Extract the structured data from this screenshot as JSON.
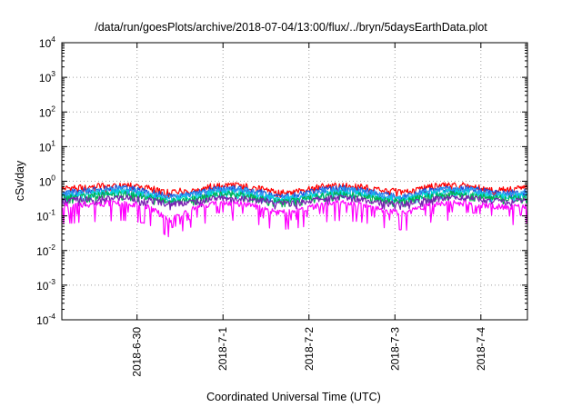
{
  "chart_data": {
    "type": "line",
    "title": "/data/run/goesPlots/archive/2018-07-04/13:00/flux/../bryn/5daysEarthData.plot",
    "xlabel": "Coordinated Universal Time (UTC)",
    "ylabel": "cSv/day",
    "x_range": [
      "2018-06-29 03:00",
      "2018-07-04 13:00"
    ],
    "ylim": [
      0.0001,
      10000
    ],
    "yscale": "log",
    "grid": true,
    "y_ticks": [
      {
        "base": "10",
        "exp": "-4"
      },
      {
        "base": "10",
        "exp": "-3"
      },
      {
        "base": "10",
        "exp": "-2"
      },
      {
        "base": "10",
        "exp": "-1"
      },
      {
        "base": "10",
        "exp": "0"
      },
      {
        "base": "10",
        "exp": "1"
      },
      {
        "base": "10",
        "exp": "2"
      },
      {
        "base": "10",
        "exp": "3"
      },
      {
        "base": "10",
        "exp": "4"
      }
    ],
    "x_ticks": [
      "2018-6-30",
      "2018-7-1",
      "2018-7-2",
      "2018-7-3",
      "2018-7-4"
    ],
    "x": [
      "2018-06-29 03:00",
      "2018-06-29 09:00",
      "2018-06-29 15:00",
      "2018-06-29 21:00",
      "2018-06-30 03:00",
      "2018-06-30 09:00",
      "2018-06-30 15:00",
      "2018-06-30 21:00",
      "2018-07-01 03:00",
      "2018-07-01 09:00",
      "2018-07-01 15:00",
      "2018-07-01 21:00",
      "2018-07-02 03:00",
      "2018-07-02 09:00",
      "2018-07-02 15:00",
      "2018-07-02 21:00",
      "2018-07-03 03:00",
      "2018-07-03 09:00",
      "2018-07-03 15:00",
      "2018-07-03 21:00",
      "2018-07-04 03:00",
      "2018-07-04 09:00",
      "2018-07-04 13:00"
    ],
    "series": [
      {
        "color": "#ff0000",
        "values": [
          0.62,
          0.68,
          0.78,
          0.82,
          0.66,
          0.5,
          0.58,
          0.74,
          0.8,
          0.68,
          0.5,
          0.55,
          0.72,
          0.8,
          0.72,
          0.55,
          0.5,
          0.7,
          0.8,
          0.78,
          0.62,
          0.6,
          0.66
        ]
      },
      {
        "color": "#1f4fd8",
        "values": [
          0.5,
          0.55,
          0.63,
          0.66,
          0.52,
          0.38,
          0.45,
          0.6,
          0.65,
          0.55,
          0.38,
          0.42,
          0.58,
          0.65,
          0.58,
          0.42,
          0.38,
          0.56,
          0.66,
          0.63,
          0.5,
          0.48,
          0.53
        ]
      },
      {
        "color": "#2a9df4",
        "values": [
          0.45,
          0.5,
          0.58,
          0.6,
          0.47,
          0.34,
          0.4,
          0.55,
          0.6,
          0.5,
          0.34,
          0.38,
          0.53,
          0.6,
          0.53,
          0.38,
          0.34,
          0.51,
          0.6,
          0.58,
          0.45,
          0.43,
          0.48
        ]
      },
      {
        "color": "#00d8d8",
        "values": [
          0.38,
          0.42,
          0.48,
          0.5,
          0.4,
          0.3,
          0.34,
          0.46,
          0.5,
          0.42,
          0.3,
          0.33,
          0.44,
          0.5,
          0.44,
          0.33,
          0.3,
          0.43,
          0.5,
          0.48,
          0.38,
          0.37,
          0.41
        ]
      },
      {
        "color": "#00b050",
        "values": [
          0.34,
          0.37,
          0.42,
          0.44,
          0.35,
          0.27,
          0.3,
          0.4,
          0.44,
          0.37,
          0.27,
          0.29,
          0.39,
          0.44,
          0.39,
          0.29,
          0.27,
          0.38,
          0.44,
          0.42,
          0.34,
          0.33,
          0.36
        ]
      },
      {
        "color": "#7a1fb0",
        "values": [
          0.28,
          0.3,
          0.33,
          0.34,
          0.29,
          0.23,
          0.25,
          0.32,
          0.34,
          0.3,
          0.23,
          0.24,
          0.31,
          0.34,
          0.31,
          0.24,
          0.23,
          0.3,
          0.34,
          0.33,
          0.28,
          0.27,
          0.29
        ]
      },
      {
        "color": "#ff00ff",
        "values": [
          0.2,
          0.22,
          0.24,
          0.25,
          0.2,
          0.08,
          0.16,
          0.23,
          0.25,
          0.2,
          0.13,
          0.15,
          0.22,
          0.25,
          0.22,
          0.15,
          0.13,
          0.21,
          0.25,
          0.24,
          0.2,
          0.19,
          0.21
        ]
      }
    ]
  }
}
